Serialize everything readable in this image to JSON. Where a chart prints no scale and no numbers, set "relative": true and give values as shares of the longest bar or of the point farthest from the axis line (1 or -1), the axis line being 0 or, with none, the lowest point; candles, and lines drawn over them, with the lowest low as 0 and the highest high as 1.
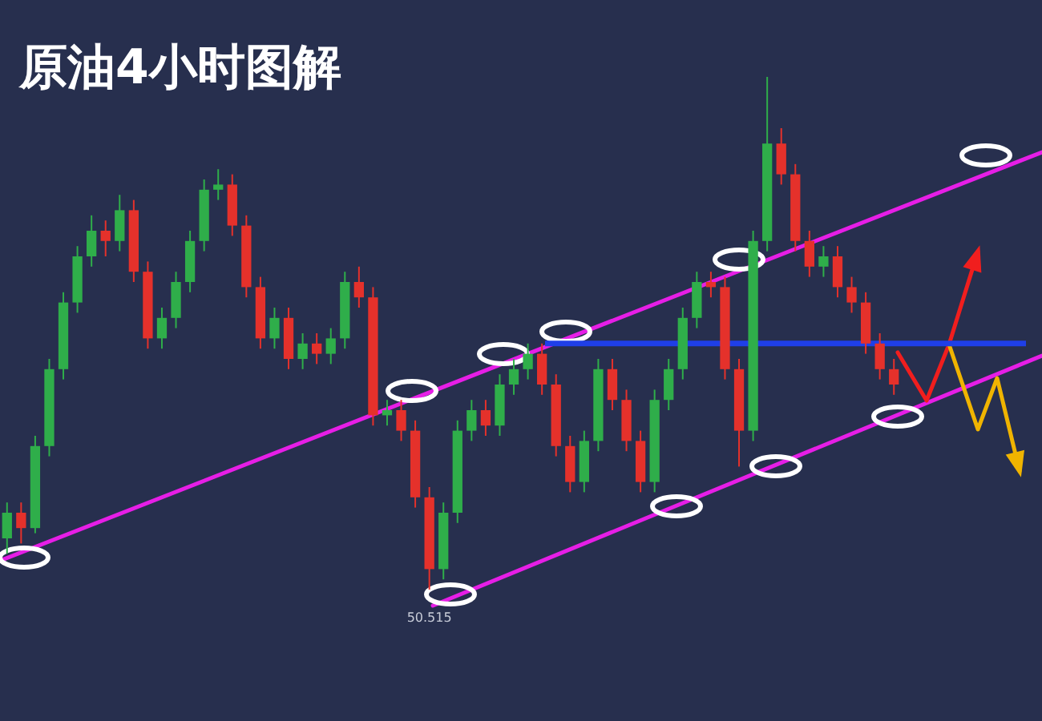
{
  "chart_data": [
    {
      "type": "candlestick",
      "title": "原油4小时图解",
      "relative": true,
      "categories": [
        null,
        null,
        null,
        null,
        null,
        null,
        null,
        null,
        null,
        null,
        null,
        null,
        null,
        null,
        null,
        null,
        null,
        null,
        null,
        null,
        null,
        null,
        null,
        null,
        null,
        null,
        null,
        null,
        null,
        null,
        null,
        null,
        null,
        null,
        null,
        null,
        null,
        null,
        null,
        null,
        null,
        null,
        null,
        null,
        null,
        null,
        null,
        null,
        null,
        null,
        null,
        null,
        null,
        null,
        null,
        null,
        null,
        null,
        null,
        null,
        null,
        null,
        null,
        null
      ],
      "ohlc": [
        [
          0.1,
          0.17,
          0.07,
          0.15
        ],
        [
          0.15,
          0.17,
          0.09,
          0.12
        ],
        [
          0.12,
          0.3,
          0.11,
          0.28
        ],
        [
          0.28,
          0.45,
          0.26,
          0.43
        ],
        [
          0.43,
          0.58,
          0.41,
          0.56
        ],
        [
          0.56,
          0.67,
          0.54,
          0.65
        ],
        [
          0.65,
          0.73,
          0.63,
          0.7
        ],
        [
          0.7,
          0.72,
          0.65,
          0.68
        ],
        [
          0.68,
          0.77,
          0.66,
          0.74
        ],
        [
          0.74,
          0.76,
          0.6,
          0.62
        ],
        [
          0.62,
          0.64,
          0.47,
          0.49
        ],
        [
          0.49,
          0.55,
          0.47,
          0.53
        ],
        [
          0.53,
          0.62,
          0.51,
          0.6
        ],
        [
          0.6,
          0.7,
          0.58,
          0.68
        ],
        [
          0.68,
          0.8,
          0.66,
          0.78
        ],
        [
          0.78,
          0.82,
          0.76,
          0.79
        ],
        [
          0.79,
          0.81,
          0.69,
          0.71
        ],
        [
          0.71,
          0.73,
          0.57,
          0.59
        ],
        [
          0.59,
          0.61,
          0.47,
          0.49
        ],
        [
          0.49,
          0.55,
          0.47,
          0.53
        ],
        [
          0.53,
          0.55,
          0.43,
          0.45
        ],
        [
          0.45,
          0.5,
          0.43,
          0.48
        ],
        [
          0.48,
          0.5,
          0.44,
          0.46
        ],
        [
          0.46,
          0.51,
          0.44,
          0.49
        ],
        [
          0.49,
          0.62,
          0.47,
          0.6
        ],
        [
          0.6,
          0.63,
          0.55,
          0.57
        ],
        [
          0.57,
          0.59,
          0.32,
          0.34
        ],
        [
          0.34,
          0.37,
          0.32,
          0.35
        ],
        [
          0.35,
          0.37,
          0.29,
          0.31
        ],
        [
          0.31,
          0.33,
          0.16,
          0.18
        ],
        [
          0.18,
          0.2,
          0.0,
          0.04
        ],
        [
          0.04,
          0.17,
          0.02,
          0.15
        ],
        [
          0.15,
          0.33,
          0.13,
          0.31
        ],
        [
          0.31,
          0.37,
          0.29,
          0.35
        ],
        [
          0.35,
          0.37,
          0.3,
          0.32
        ],
        [
          0.32,
          0.42,
          0.3,
          0.4
        ],
        [
          0.4,
          0.45,
          0.38,
          0.43
        ],
        [
          0.43,
          0.48,
          0.41,
          0.46
        ],
        [
          0.46,
          0.48,
          0.38,
          0.4
        ],
        [
          0.4,
          0.42,
          0.26,
          0.28
        ],
        [
          0.28,
          0.3,
          0.19,
          0.21
        ],
        [
          0.21,
          0.31,
          0.19,
          0.29
        ],
        [
          0.29,
          0.45,
          0.27,
          0.43
        ],
        [
          0.43,
          0.45,
          0.35,
          0.37
        ],
        [
          0.37,
          0.39,
          0.27,
          0.29
        ],
        [
          0.29,
          0.31,
          0.19,
          0.21
        ],
        [
          0.21,
          0.39,
          0.19,
          0.37
        ],
        [
          0.37,
          0.45,
          0.35,
          0.43
        ],
        [
          0.43,
          0.55,
          0.41,
          0.53
        ],
        [
          0.53,
          0.62,
          0.51,
          0.6
        ],
        [
          0.6,
          0.62,
          0.57,
          0.59
        ],
        [
          0.59,
          0.61,
          0.41,
          0.43
        ],
        [
          0.43,
          0.45,
          0.24,
          0.31
        ],
        [
          0.31,
          0.7,
          0.29,
          0.68
        ],
        [
          0.68,
          1.0,
          0.66,
          0.87
        ],
        [
          0.87,
          0.9,
          0.79,
          0.81
        ],
        [
          0.81,
          0.83,
          0.66,
          0.68
        ],
        [
          0.68,
          0.7,
          0.61,
          0.63
        ],
        [
          0.63,
          0.67,
          0.61,
          0.65
        ],
        [
          0.65,
          0.67,
          0.57,
          0.59
        ],
        [
          0.59,
          0.61,
          0.54,
          0.56
        ],
        [
          0.56,
          0.58,
          0.46,
          0.48
        ],
        [
          0.48,
          0.5,
          0.41,
          0.43
        ],
        [
          0.43,
          0.45,
          0.38,
          0.4
        ]
      ],
      "ref_lines": [
        {
          "axis": "y",
          "value": 0.48,
          "color": "#1f3fe8"
        }
      ],
      "annotations": [
        "50.515"
      ]
    },
    {
      "type": "line",
      "relative": true,
      "categories": [
        null,
        null
      ],
      "series": [
        {
          "color": "#e61ee6",
          "values": [
            0,
            1
          ]
        }
      ]
    },
    {
      "type": "line",
      "relative": true,
      "categories": [
        null,
        null
      ],
      "series": [
        {
          "color": "#e61ee6",
          "values": [
            0,
            1
          ]
        }
      ]
    }
  ]
}
